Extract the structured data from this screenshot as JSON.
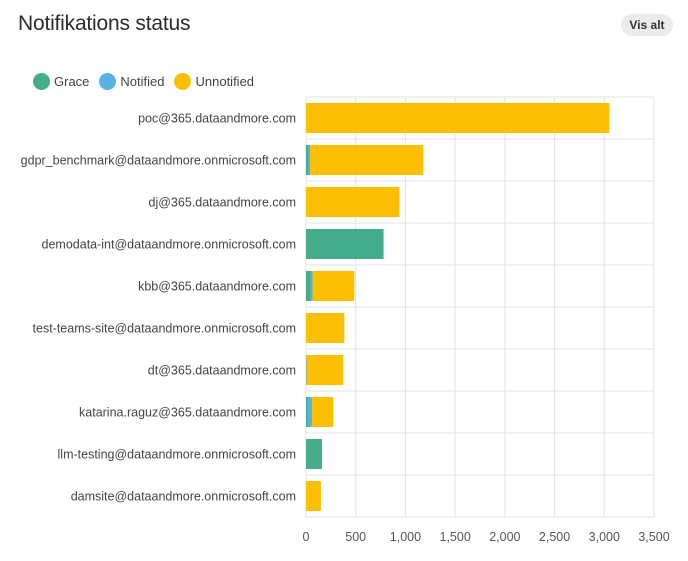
{
  "header": {
    "title": "Notifikations status",
    "vis_alt_label": "Vis alt"
  },
  "colors": {
    "grace": "#45ac8c",
    "notified": "#57b2e0",
    "unnotified": "#fbbf04",
    "grid": "#e3e3e3"
  },
  "legend": [
    {
      "label": "Grace",
      "color": "#45ac8c"
    },
    {
      "label": "Notified",
      "color": "#57b2e0"
    },
    {
      "label": "Unnotified",
      "color": "#fbbf04"
    }
  ],
  "chart_data": {
    "type": "bar",
    "orientation": "horizontal",
    "stacked": true,
    "title": "Notifikations status",
    "xlim": [
      0,
      3500
    ],
    "x_ticks": [
      "0",
      "500",
      "1,000",
      "1,500",
      "2,000",
      "2,500",
      "3,000",
      "3,500"
    ],
    "x_tick_values": [
      0,
      500,
      1000,
      1500,
      2000,
      2500,
      3000,
      3500
    ],
    "grid": true,
    "legend_position": "top-left",
    "categories": [
      "poc@365.dataandmore.com",
      "gdpr_benchmark@dataandmore.onmicrosoft.com",
      "dj@365.dataandmore.com",
      "demodata-int@dataandmore.onmicrosoft.com",
      "kbb@365.dataandmore.com",
      "test-teams-site@dataandmore.onmicrosoft.com",
      "dt@365.dataandmore.com",
      "katarina.raguz@365.dataandmore.com",
      "llm-testing@dataandmore.onmicrosoft.com",
      "damsite@dataandmore.onmicrosoft.com"
    ],
    "series": [
      {
        "name": "Grace",
        "color": "#45ac8c",
        "values": [
          0,
          20,
          0,
          780,
          45,
          0,
          0,
          15,
          160,
          0
        ]
      },
      {
        "name": "Notified",
        "color": "#57b2e0",
        "values": [
          0,
          20,
          0,
          0,
          20,
          0,
          5,
          45,
          0,
          0
        ]
      },
      {
        "name": "Unnotified",
        "color": "#fbbf04",
        "values": [
          3050,
          1140,
          940,
          0,
          420,
          385,
          370,
          215,
          0,
          150
        ]
      }
    ]
  }
}
